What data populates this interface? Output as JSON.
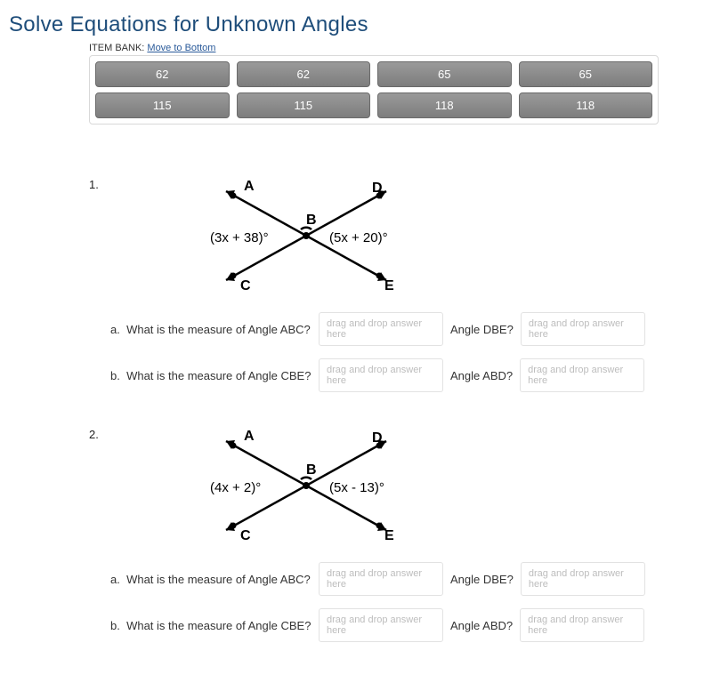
{
  "title": "Solve Equations for Unknown Angles",
  "title_color": "#1e4d7a",
  "title_fontsize": 24,
  "bank": {
    "label_prefix": "ITEM BANK:",
    "link_text": "Move to Bottom",
    "items": [
      "62",
      "62",
      "65",
      "65",
      "115",
      "115",
      "118",
      "118"
    ]
  },
  "dropzone_placeholder": "drag and drop answer here",
  "figure": {
    "points": {
      "A": "A",
      "B": "B",
      "C": "C",
      "D": "D",
      "E": "E"
    }
  },
  "problems": [
    {
      "number": "1.",
      "expr_left": "(3x + 38)°",
      "expr_right": "(5x + 20)°",
      "questions": [
        {
          "letter": "a.",
          "text": "What is the measure of Angle ABC?",
          "right_label": "Angle DBE?"
        },
        {
          "letter": "b.",
          "text": "What is the measure of Angle CBE?",
          "right_label": "Angle ABD?"
        }
      ]
    },
    {
      "number": "2.",
      "expr_left": "(4x + 2)°",
      "expr_right": "(5x - 13)°",
      "questions": [
        {
          "letter": "a.",
          "text": "What is the measure of Angle ABC?",
          "right_label": "Angle DBE?"
        },
        {
          "letter": "b.",
          "text": "What is the measure of Angle CBE?",
          "right_label": "Angle ABD?"
        }
      ]
    }
  ]
}
